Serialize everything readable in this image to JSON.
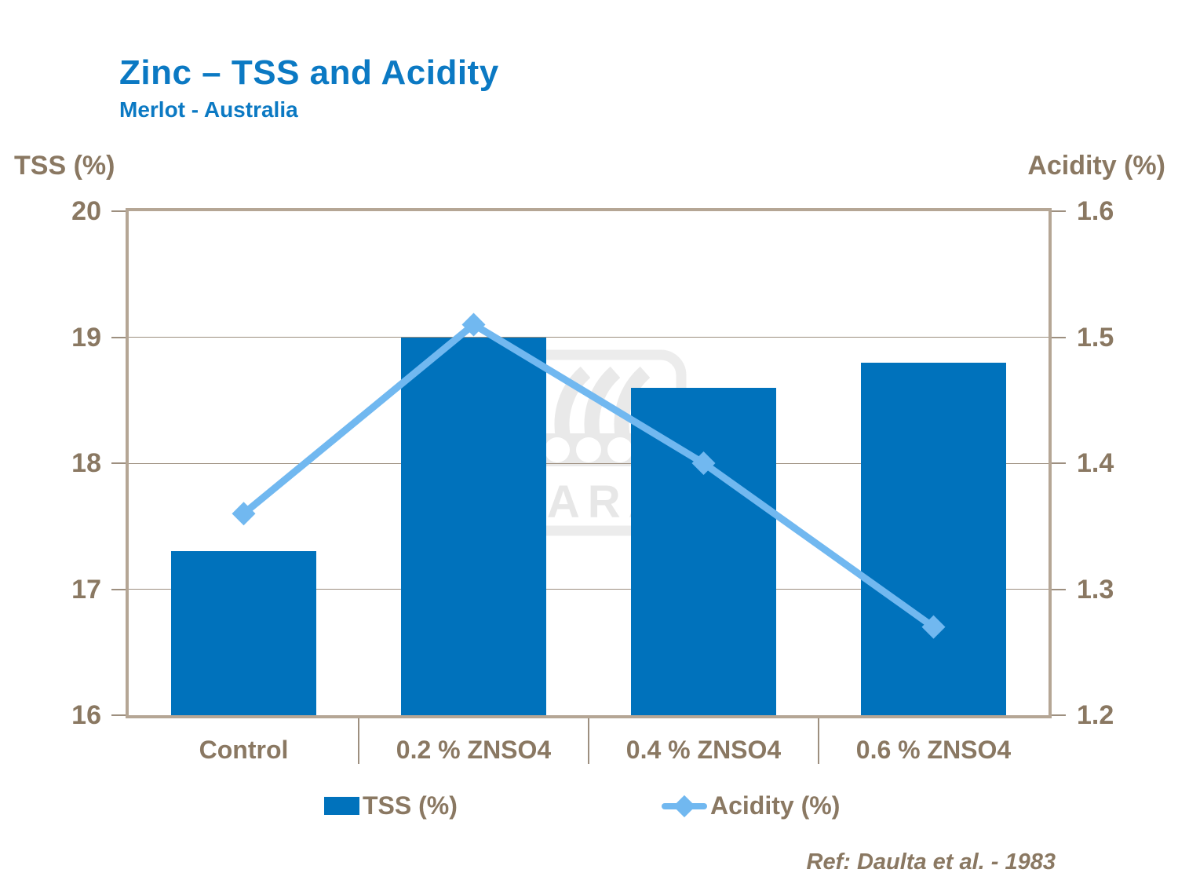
{
  "header": {
    "title": "Zinc – TSS and Acidity",
    "subtitle": "Merlot - Australia"
  },
  "chart_data": {
    "type": "bar+line combo",
    "categories": [
      "Control",
      "0.2 % ZNSO4",
      "0.4 % ZNSO4",
      "0.6 % ZNSO4"
    ],
    "series": [
      {
        "name": "TSS (%)",
        "type": "bar",
        "axis": "left",
        "color": "#0072bc",
        "values": [
          17.3,
          19.0,
          18.6,
          18.8
        ]
      },
      {
        "name": "Acidity (%)",
        "type": "line",
        "axis": "right",
        "color": "#71b8f0",
        "values": [
          1.36,
          1.51,
          1.4,
          1.27
        ]
      }
    ],
    "left_axis": {
      "label": "TSS (%)",
      "min": 16,
      "max": 20,
      "step": 1,
      "ticks": [
        "20",
        "19",
        "18",
        "17",
        "16"
      ]
    },
    "right_axis": {
      "label": "Acidity (%)",
      "min": 1.2,
      "max": 1.6,
      "step": 0.1,
      "ticks": [
        "1.6",
        "1.5",
        "1.4",
        "1.3",
        "1.2"
      ]
    },
    "grid": true,
    "legend_position": "bottom"
  },
  "legend": {
    "items": [
      {
        "label": "TSS (%)",
        "marker": "square"
      },
      {
        "label": "Acidity (%)",
        "marker": "diamond-line"
      }
    ]
  },
  "footer": {
    "ref": "Ref: Daulta et al. - 1983"
  },
  "watermark": {
    "text": "YARA",
    "icon": "yara-viking-ship-logo"
  },
  "colors": {
    "title-blue": "#0b79c3",
    "bar-blue": "#0072bc",
    "line-blue": "#71b8f0",
    "text-brown": "#8a7862",
    "grid-brown": "#9d8f7f",
    "frame-beige": "#b5a695",
    "watermark-gray": "#e9e9e9"
  }
}
